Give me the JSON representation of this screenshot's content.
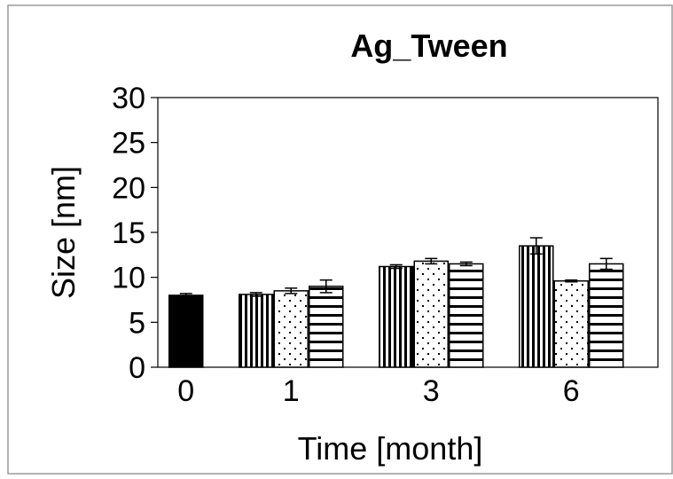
{
  "chart_data": {
    "type": "bar",
    "title": "Ag_Tween",
    "xlabel": "Time [month]",
    "ylabel": "Size [nm]",
    "ylim": [
      0,
      30
    ],
    "yticks": [
      0,
      5,
      10,
      15,
      20,
      25,
      30
    ],
    "categories": [
      "0",
      "1",
      "3",
      "6"
    ],
    "grid": false,
    "legend": "none",
    "bars": [
      {
        "category": "0",
        "pattern": "solid",
        "value": 8.0,
        "error": 0.2
      },
      {
        "category": "1",
        "pattern": "vertical-lines",
        "value": 8.1,
        "error": 0.2
      },
      {
        "category": "1",
        "pattern": "dots",
        "value": 8.5,
        "error": 0.3
      },
      {
        "category": "1",
        "pattern": "horizontal-lines",
        "value": 9.0,
        "error": 0.7
      },
      {
        "category": "3",
        "pattern": "vertical-lines",
        "value": 11.2,
        "error": 0.2
      },
      {
        "category": "3",
        "pattern": "dots",
        "value": 11.8,
        "error": 0.3
      },
      {
        "category": "3",
        "pattern": "horizontal-lines",
        "value": 11.5,
        "error": 0.2
      },
      {
        "category": "6",
        "pattern": "vertical-lines",
        "value": 13.5,
        "error": 0.9
      },
      {
        "category": "6",
        "pattern": "dots",
        "value": 9.6,
        "error": 0.1
      },
      {
        "category": "6",
        "pattern": "horizontal-lines",
        "value": 11.5,
        "error": 0.6
      }
    ]
  }
}
